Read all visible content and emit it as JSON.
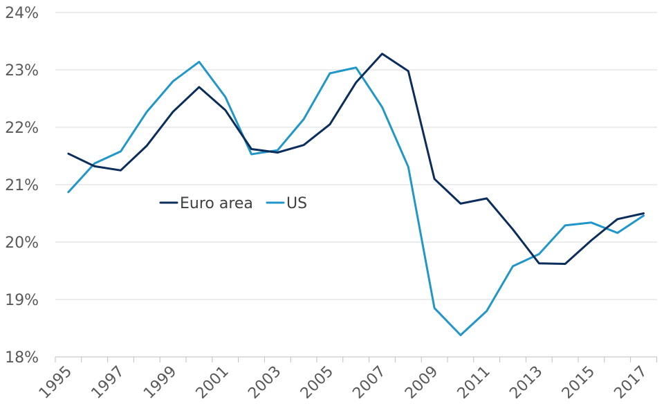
{
  "chart_data": {
    "type": "line",
    "title": "",
    "xlabel": "",
    "ylabel": "",
    "x": [
      1995,
      1996,
      1997,
      1998,
      1999,
      2000,
      2001,
      2002,
      2003,
      2004,
      2005,
      2006,
      2007,
      2008,
      2009,
      2010,
      2011,
      2012,
      2013,
      2014,
      2015,
      2016,
      2017
    ],
    "x_tick_labels": [
      "1995",
      "1997",
      "1999",
      "2001",
      "2003",
      "2005",
      "2007",
      "2009",
      "2011",
      "2013",
      "2015",
      "2017"
    ],
    "y_tick_labels": [
      "18%",
      "19%",
      "20%",
      "21%",
      "22%",
      "23%",
      "24%"
    ],
    "y_ticks": [
      18,
      19,
      20,
      21,
      22,
      23,
      24
    ],
    "ylim": [
      18,
      24
    ],
    "grid": "horizontal",
    "legend_placement": "center-left",
    "series": [
      {
        "name": "Euro area",
        "color": "#0b2d5b",
        "values": [
          21.54,
          21.32,
          21.25,
          21.68,
          22.27,
          22.7,
          22.3,
          21.62,
          21.56,
          21.69,
          22.05,
          22.78,
          23.28,
          22.98,
          21.1,
          20.67,
          20.76,
          20.22,
          19.63,
          19.62,
          20.03,
          20.4,
          20.5
        ]
      },
      {
        "name": "US",
        "color": "#2196c9",
        "values": [
          20.87,
          21.37,
          21.58,
          22.27,
          22.8,
          23.14,
          22.53,
          21.53,
          21.6,
          22.14,
          22.94,
          23.04,
          22.35,
          21.31,
          18.85,
          18.38,
          18.8,
          19.58,
          19.79,
          20.29,
          20.34,
          20.16,
          20.46
        ]
      }
    ]
  }
}
